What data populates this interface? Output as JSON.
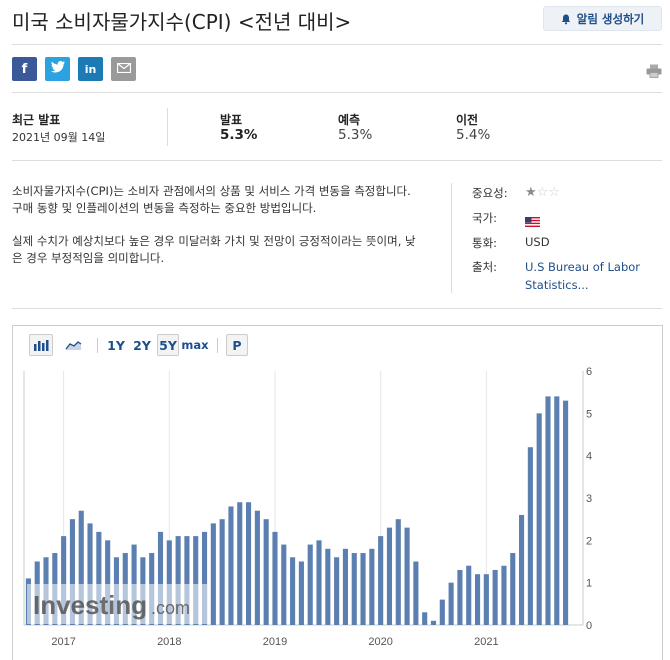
{
  "page": {
    "title": "미국 소비자물가지수(CPI) <전년 대비>",
    "alert_button": "알림 생성하기"
  },
  "share": {
    "facebook": "f",
    "twitter": "t",
    "linkedin": "in"
  },
  "stats": {
    "latest_label": "최근 발표",
    "latest_date": "2021년 09월 14일",
    "actual_label": "발표",
    "actual_value": "5.3%",
    "forecast_label": "예측",
    "forecast_value": "5.3%",
    "previous_label": "이전",
    "previous_value": "5.4%"
  },
  "description": {
    "p1": "소비자물가지수(CPI)는 소비자 관점에서의 상품 및 서비스 가격 변동을 측정합니다. 구매 동향 및 인플레이션의 변동을 측정하는 중요한 방법입니다.",
    "p2": "실제 수치가 예상치보다 높은 경우 미달러화 가치 및 전망이 긍정적이라는 뜻이며, 낮은 경우 부정적임을 의미합니다."
  },
  "meta": {
    "importance_label": "중요성:",
    "importance_stars": 1,
    "country_label": "국가:",
    "country_flag": "us-flag-icon",
    "currency_label": "통화:",
    "currency_value": "USD",
    "source_label": "출처:",
    "source_line1": "U.S Bureau of Labor",
    "source_line2": "Statistics..."
  },
  "toolbar": {
    "range_1y": "1Y",
    "range_2y": "2Y",
    "range_5y": "5Y",
    "range_max": "max",
    "p_button": "P",
    "active_range": "5Y"
  },
  "watermark": {
    "brand": "Investing",
    "suffix": ".com"
  },
  "colors": {
    "bar": "#5b7fb0",
    "accent": "#1f4f8a"
  },
  "chart_data": {
    "type": "bar",
    "title": "",
    "xlabel": "",
    "ylabel": "",
    "ylim": [
      0,
      6
    ],
    "y_ticks": [
      0,
      1,
      2,
      3,
      4,
      5,
      6
    ],
    "x_tick_labels": [
      {
        "label": "2017",
        "index": 4
      },
      {
        "label": "2018",
        "index": 16
      },
      {
        "label": "2019",
        "index": 28
      },
      {
        "label": "2020",
        "index": 40
      },
      {
        "label": "2021",
        "index": 52
      }
    ],
    "values": [
      1.1,
      1.5,
      1.6,
      1.7,
      2.1,
      2.5,
      2.7,
      2.4,
      2.2,
      2.0,
      1.6,
      1.7,
      1.9,
      1.6,
      1.7,
      2.2,
      2.0,
      2.1,
      2.1,
      2.1,
      2.2,
      2.4,
      2.5,
      2.8,
      2.9,
      2.9,
      2.7,
      2.5,
      2.2,
      1.9,
      1.6,
      1.5,
      1.9,
      2.0,
      1.8,
      1.6,
      1.8,
      1.7,
      1.7,
      1.8,
      2.1,
      2.3,
      2.5,
      2.3,
      1.5,
      0.3,
      0.1,
      0.6,
      1.0,
      1.3,
      1.4,
      1.2,
      1.2,
      1.3,
      1.4,
      1.7,
      2.6,
      4.2,
      5.0,
      5.4,
      5.4,
      5.3
    ]
  }
}
